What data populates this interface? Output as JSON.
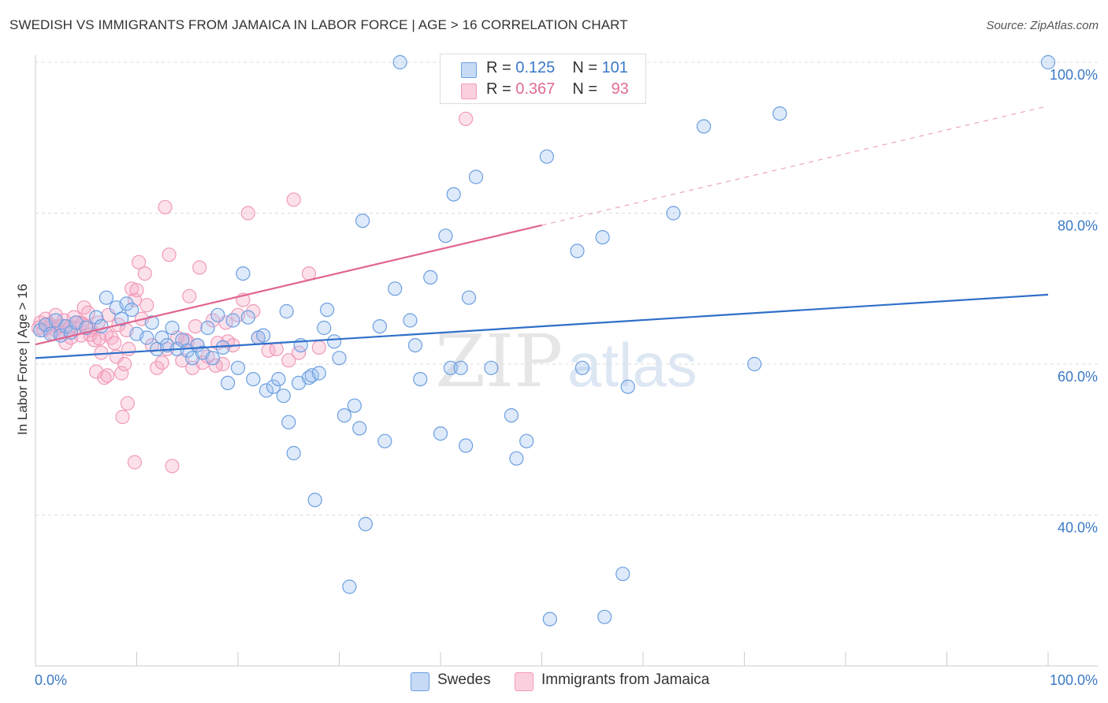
{
  "title": "SWEDISH VS IMMIGRANTS FROM JAMAICA IN LABOR FORCE | AGE > 16 CORRELATION CHART",
  "source": "Source: ZipAtlas.com",
  "watermark": {
    "zip": "ZIP",
    "atlas": "atlas"
  },
  "legend_top": [
    {
      "r_label": "R = ",
      "r_value": "0.125",
      "n_label": "N = ",
      "n_value": "101"
    },
    {
      "r_label": "R = ",
      "r_value": "0.367",
      "n_label": "N = ",
      "n_value": "93"
    }
  ],
  "chart_data": {
    "type": "scatter",
    "title": "SWEDISH VS IMMIGRANTS FROM JAMAICA IN LABOR FORCE | AGE > 16 CORRELATION CHART",
    "xlabel": "",
    "ylabel": "In Labor Force | Age > 16",
    "xlim": [
      0,
      100
    ],
    "ylim": [
      20,
      102
    ],
    "x_tick_labels": [
      "0.0%",
      "100.0%"
    ],
    "y_ticks": [
      40,
      60,
      80,
      100
    ],
    "y_tick_labels": [
      "40.0%",
      "60.0%",
      "80.0%",
      "100.0%"
    ],
    "grid": true,
    "legend_position": "top-center",
    "colors": {
      "swedes": "#6b9fe0",
      "jamaica": "#f09ab8",
      "swedes_line": "#2f6fc9",
      "jamaica_line": "#e0648f"
    },
    "series": [
      {
        "name": "Swedes",
        "R": 0.125,
        "N": 101,
        "trend": {
          "x0": 0,
          "y0": 60.8,
          "x1": 100,
          "y1": 69.2
        },
        "points": [
          [
            0.5,
            64.5
          ],
          [
            1.0,
            65.2
          ],
          [
            1.5,
            64.0
          ],
          [
            2.0,
            65.8
          ],
          [
            2.5,
            63.8
          ],
          [
            3.0,
            65.0
          ],
          [
            3.5,
            64.2
          ],
          [
            4.0,
            65.5
          ],
          [
            5.0,
            64.8
          ],
          [
            6.0,
            66.2
          ],
          [
            6.5,
            65.0
          ],
          [
            7.0,
            68.8
          ],
          [
            8.0,
            67.5
          ],
          [
            8.5,
            66.0
          ],
          [
            9.0,
            68.0
          ],
          [
            9.5,
            67.2
          ],
          [
            10.0,
            64.0
          ],
          [
            11.0,
            63.5
          ],
          [
            11.5,
            65.5
          ],
          [
            12.0,
            62.0
          ],
          [
            12.5,
            63.5
          ],
          [
            13.0,
            62.5
          ],
          [
            13.5,
            64.8
          ],
          [
            14.0,
            62.0
          ],
          [
            14.5,
            63.2
          ],
          [
            15.0,
            61.8
          ],
          [
            15.5,
            60.8
          ],
          [
            16.0,
            62.5
          ],
          [
            16.5,
            61.5
          ],
          [
            17.0,
            64.8
          ],
          [
            17.5,
            60.8
          ],
          [
            18.0,
            66.5
          ],
          [
            18.5,
            62.2
          ],
          [
            19.0,
            57.5
          ],
          [
            19.5,
            65.8
          ],
          [
            20.0,
            59.5
          ],
          [
            20.5,
            72.0
          ],
          [
            21.0,
            66.2
          ],
          [
            21.5,
            58.0
          ],
          [
            22.0,
            63.5
          ],
          [
            22.5,
            63.8
          ],
          [
            22.8,
            56.5
          ],
          [
            23.5,
            57.0
          ],
          [
            24.0,
            58.0
          ],
          [
            24.5,
            55.8
          ],
          [
            24.8,
            67.0
          ],
          [
            25.0,
            52.3
          ],
          [
            25.5,
            48.2
          ],
          [
            26.0,
            57.5
          ],
          [
            26.2,
            62.5
          ],
          [
            27.0,
            58.2
          ],
          [
            27.3,
            58.5
          ],
          [
            27.6,
            42.0
          ],
          [
            28.0,
            58.8
          ],
          [
            28.5,
            64.8
          ],
          [
            28.8,
            67.2
          ],
          [
            29.5,
            63.0
          ],
          [
            30.0,
            60.8
          ],
          [
            30.5,
            53.2
          ],
          [
            31.0,
            30.5
          ],
          [
            31.5,
            54.5
          ],
          [
            32.0,
            51.5
          ],
          [
            32.3,
            79.0
          ],
          [
            32.6,
            38.8
          ],
          [
            34.0,
            65.0
          ],
          [
            34.5,
            49.8
          ],
          [
            35.5,
            70.0
          ],
          [
            36.0,
            100.0
          ],
          [
            37.0,
            65.8
          ],
          [
            37.5,
            62.5
          ],
          [
            38.0,
            58.0
          ],
          [
            39.0,
            71.5
          ],
          [
            40.0,
            50.8
          ],
          [
            40.5,
            77.0
          ],
          [
            41.0,
            59.5
          ],
          [
            41.3,
            82.5
          ],
          [
            42.0,
            59.5
          ],
          [
            42.5,
            49.2
          ],
          [
            42.8,
            68.8
          ],
          [
            43.5,
            84.8
          ],
          [
            45.0,
            59.5
          ],
          [
            47.0,
            53.2
          ],
          [
            47.5,
            47.5
          ],
          [
            48.5,
            49.8
          ],
          [
            49.5,
            100.0
          ],
          [
            50.5,
            87.5
          ],
          [
            50.8,
            26.2
          ],
          [
            53.5,
            75.0
          ],
          [
            54.0,
            59.5
          ],
          [
            56.0,
            76.8
          ],
          [
            56.2,
            26.5
          ],
          [
            58.0,
            32.2
          ],
          [
            58.5,
            57.0
          ],
          [
            63.0,
            80.0
          ],
          [
            66.0,
            91.5
          ],
          [
            71.0,
            60.0
          ],
          [
            73.5,
            93.2
          ],
          [
            100.0,
            100.0
          ]
        ]
      },
      {
        "name": "Immigrants from Jamaica",
        "R": 0.367,
        "N": 93,
        "trend": {
          "x0": 0,
          "y0": 62.6,
          "x1": 50,
          "y1": 78.4
        },
        "trend_dashed": {
          "x0": 50,
          "y0": 78.4,
          "x1": 100,
          "y1": 94.2
        },
        "points": [
          [
            0.5,
            65.5
          ],
          [
            0.8,
            64.5
          ],
          [
            1.0,
            66.0
          ],
          [
            1.2,
            64.8
          ],
          [
            1.5,
            65.2
          ],
          [
            1.8,
            64.0
          ],
          [
            2.0,
            66.5
          ],
          [
            2.2,
            65.0
          ],
          [
            2.5,
            64.2
          ],
          [
            2.8,
            65.8
          ],
          [
            3.0,
            62.8
          ],
          [
            3.2,
            64.5
          ],
          [
            3.5,
            63.5
          ],
          [
            3.8,
            66.2
          ],
          [
            4.0,
            64.8
          ],
          [
            4.2,
            65.5
          ],
          [
            4.5,
            63.8
          ],
          [
            4.8,
            67.5
          ],
          [
            5.0,
            65.0
          ],
          [
            5.2,
            66.8
          ],
          [
            5.5,
            64.5
          ],
          [
            5.8,
            63.2
          ],
          [
            6.0,
            59.0
          ],
          [
            6.2,
            65.5
          ],
          [
            6.5,
            61.5
          ],
          [
            6.8,
            58.2
          ],
          [
            7.0,
            64.0
          ],
          [
            7.2,
            66.5
          ],
          [
            7.5,
            63.5
          ],
          [
            7.8,
            62.8
          ],
          [
            8.0,
            61.0
          ],
          [
            8.2,
            65.2
          ],
          [
            8.5,
            58.8
          ],
          [
            8.8,
            60.0
          ],
          [
            9.0,
            64.5
          ],
          [
            9.2,
            62.0
          ],
          [
            9.5,
            70.0
          ],
          [
            9.8,
            68.5
          ],
          [
            10.0,
            69.8
          ],
          [
            10.5,
            66.0
          ],
          [
            11.0,
            67.8
          ],
          [
            11.5,
            62.5
          ],
          [
            12.0,
            59.5
          ],
          [
            12.5,
            60.2
          ],
          [
            13.0,
            62.0
          ],
          [
            13.2,
            74.5
          ],
          [
            13.5,
            46.5
          ],
          [
            14.0,
            63.5
          ],
          [
            14.5,
            60.5
          ],
          [
            15.0,
            63.0
          ],
          [
            15.5,
            59.5
          ],
          [
            16.0,
            62.5
          ],
          [
            16.5,
            60.2
          ],
          [
            17.0,
            61.0
          ],
          [
            17.5,
            65.8
          ],
          [
            18.0,
            62.8
          ],
          [
            18.5,
            60.0
          ],
          [
            19.0,
            63.0
          ],
          [
            19.5,
            62.5
          ],
          [
            20.0,
            66.5
          ],
          [
            20.5,
            68.5
          ],
          [
            21.0,
            80.0
          ],
          [
            25.5,
            81.8
          ],
          [
            27.0,
            72.0
          ],
          [
            42.5,
            92.5
          ],
          [
            0.3,
            64.8
          ],
          [
            1.1,
            65.3
          ],
          [
            1.9,
            64.6
          ],
          [
            2.6,
            65.1
          ],
          [
            3.4,
            64.9
          ],
          [
            4.6,
            65.4
          ],
          [
            5.4,
            63.9
          ],
          [
            6.3,
            63.4
          ],
          [
            7.1,
            58.5
          ],
          [
            8.6,
            53.0
          ],
          [
            9.1,
            54.8
          ],
          [
            9.8,
            47.0
          ],
          [
            10.2,
            73.5
          ],
          [
            10.8,
            72.0
          ],
          [
            12.8,
            80.8
          ],
          [
            14.8,
            63.2
          ],
          [
            15.2,
            69.0
          ],
          [
            15.8,
            65.0
          ],
          [
            16.2,
            72.8
          ],
          [
            17.8,
            59.8
          ],
          [
            18.8,
            65.5
          ],
          [
            21.5,
            67.0
          ],
          [
            22.0,
            63.5
          ],
          [
            23.0,
            61.8
          ],
          [
            23.8,
            62.0
          ],
          [
            25.0,
            60.5
          ],
          [
            26.0,
            61.5
          ],
          [
            28.0,
            62.2
          ]
        ]
      }
    ]
  },
  "legend_bottom": [
    "Swedes",
    "Immigrants from Jamaica"
  ]
}
